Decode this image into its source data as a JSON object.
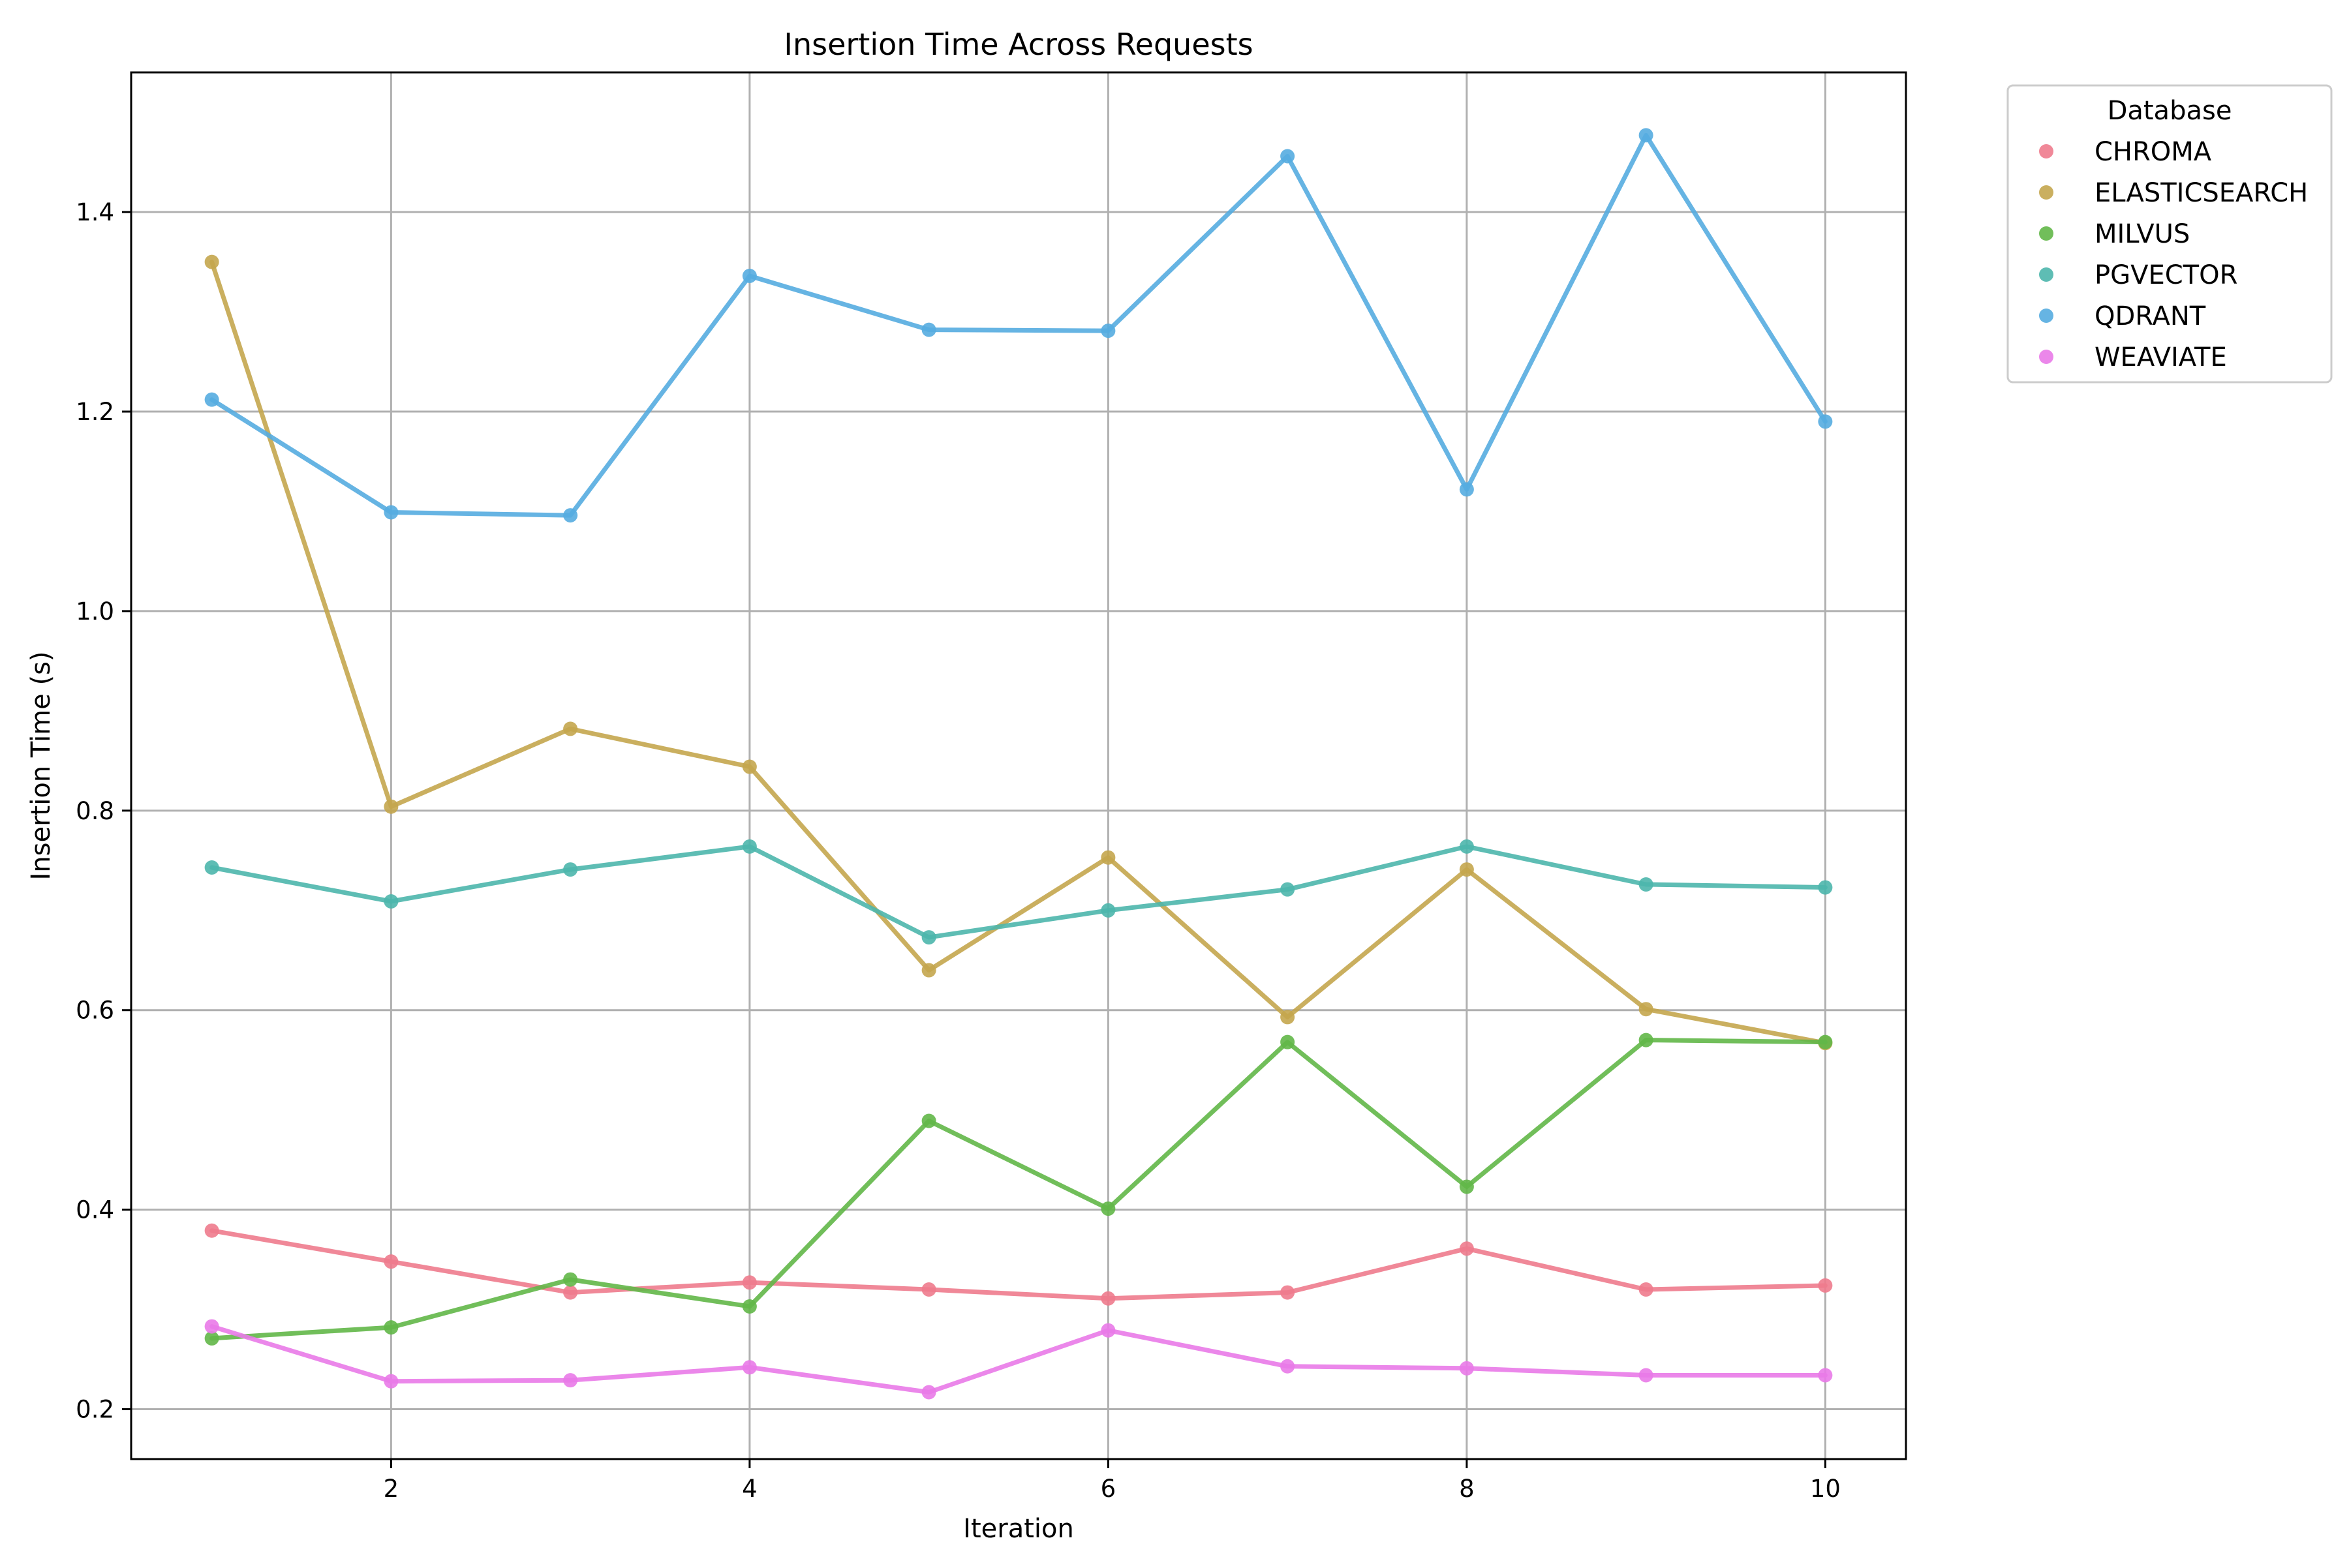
{
  "chart_data": {
    "type": "line",
    "title": "Insertion Time Across Requests",
    "xlabel": "Iteration",
    "ylabel": "Insertion Time (s)",
    "xlim": [
      0.55,
      10.45
    ],
    "ylim": [
      0.15,
      1.54
    ],
    "xticks": [
      2,
      4,
      6,
      8,
      10
    ],
    "yticks": [
      0.2,
      0.4,
      0.6,
      0.8,
      1.0,
      1.2,
      1.4
    ],
    "grid": true,
    "legend": {
      "title": "Database",
      "placement": "outside-top-right"
    },
    "x": [
      1,
      2,
      3,
      4,
      5,
      6,
      7,
      8,
      9,
      10
    ],
    "series": [
      {
        "name": "CHROMA",
        "color": "#ee7b8d",
        "values": [
          0.379,
          0.348,
          0.317,
          0.327,
          0.32,
          0.311,
          0.317,
          0.361,
          0.32,
          0.324
        ]
      },
      {
        "name": "ELASTICSEARCH",
        "color": "#c4a64e",
        "values": [
          1.35,
          0.804,
          0.882,
          0.844,
          0.64,
          0.753,
          0.593,
          0.741,
          0.601,
          0.567
        ]
      },
      {
        "name": "MILVUS",
        "color": "#62b748",
        "values": [
          0.271,
          0.282,
          0.33,
          0.303,
          0.489,
          0.401,
          0.568,
          0.423,
          0.57,
          0.568
        ]
      },
      {
        "name": "PGVECTOR",
        "color": "#4db6ac",
        "values": [
          0.743,
          0.709,
          0.741,
          0.764,
          0.673,
          0.7,
          0.721,
          0.764,
          0.726,
          0.723
        ]
      },
      {
        "name": "QDRANT",
        "color": "#55ace0",
        "values": [
          1.212,
          1.099,
          1.096,
          1.336,
          1.282,
          1.281,
          1.456,
          1.122,
          1.477,
          1.19
        ]
      },
      {
        "name": "WEAVIATE",
        "color": "#e97ae8",
        "values": [
          0.283,
          0.228,
          0.229,
          0.242,
          0.217,
          0.279,
          0.243,
          0.241,
          0.234,
          0.234
        ]
      }
    ]
  }
}
